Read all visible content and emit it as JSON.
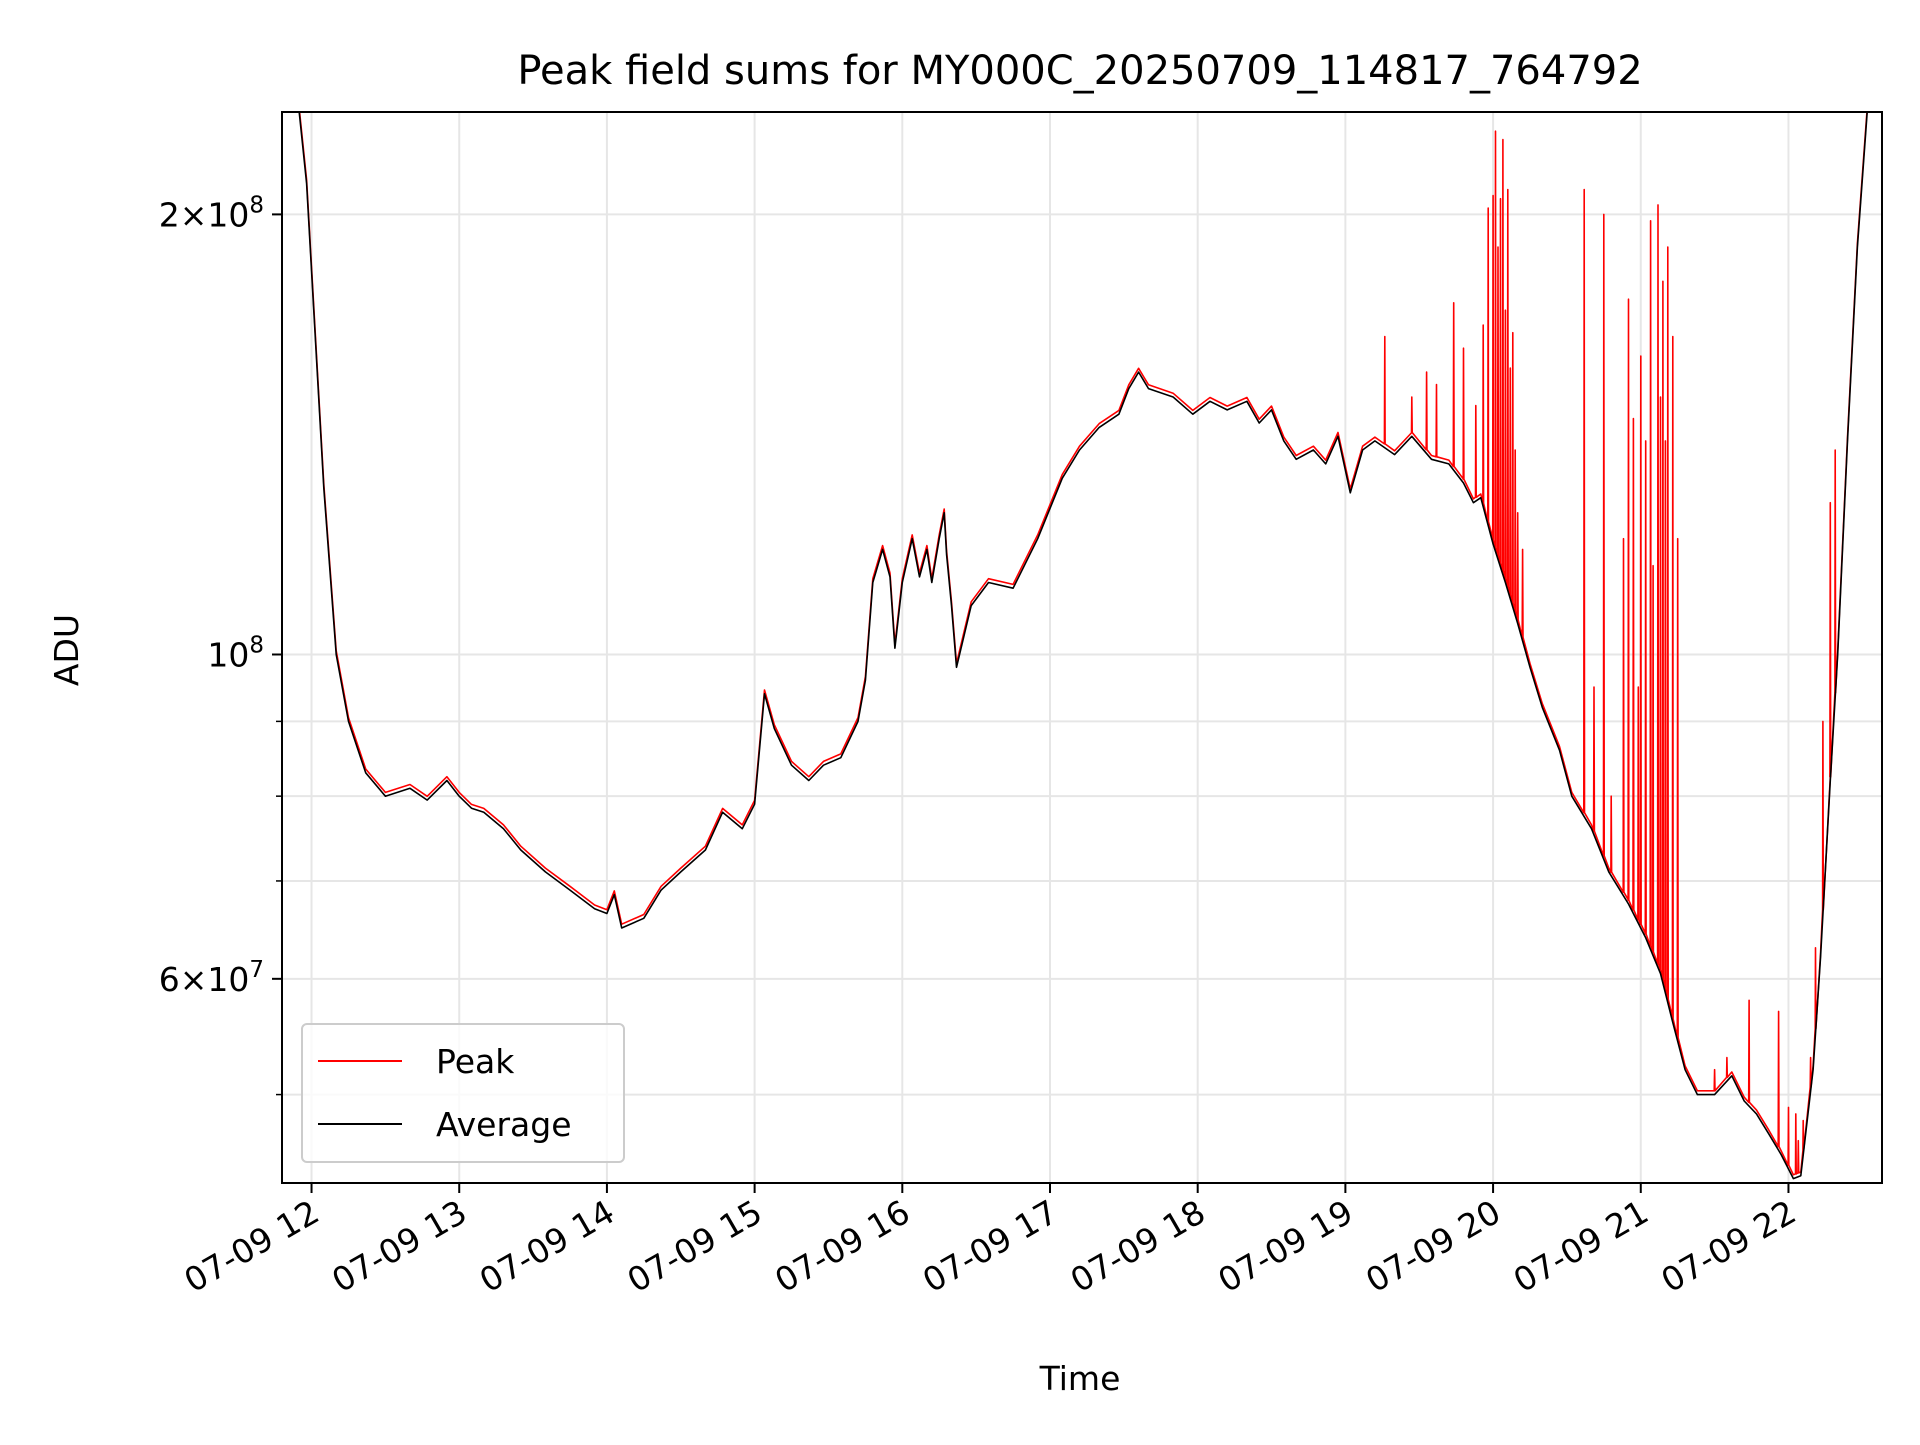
{
  "chart_data": {
    "type": "line",
    "title": "Peak field sums for MY000C_20250709_114817_764792",
    "xlabel": "Time",
    "ylabel": "ADU",
    "yscale": "log",
    "ylim": [
      43500000,
      235000000
    ],
    "xlim": [
      "07-09 11:48",
      "07-09 22:38"
    ],
    "grid": true,
    "legend": "lower-left",
    "x_ticks": [
      "07-09 12",
      "07-09 13",
      "07-09 14",
      "07-09 15",
      "07-09 16",
      "07-09 17",
      "07-09 18",
      "07-09 19",
      "07-09 20",
      "07-09 21",
      "07-09 22"
    ],
    "y_major_ticks": [
      {
        "value": 200000000,
        "mant": "2",
        "times": "×",
        "base": "10",
        "exp": "8"
      },
      {
        "value": 100000000,
        "mant": "",
        "times": "",
        "base": "10",
        "exp": "8"
      },
      {
        "value": 60000000,
        "mant": "6",
        "times": "×",
        "base": "10",
        "exp": "7"
      }
    ],
    "y_minor_ticks": [
      50000000,
      70000000,
      80000000,
      90000000
    ],
    "series": [
      {
        "name": "Average",
        "color": "#000000",
        "points": [
          [
            "11:55",
            235000000
          ],
          [
            "11:58",
            210000000
          ],
          [
            "12:05",
            130000000
          ],
          [
            "12:10",
            100000000
          ],
          [
            "12:15",
            90000000
          ],
          [
            "12:22",
            83000000
          ],
          [
            "12:30",
            80000000
          ],
          [
            "12:40",
            81000000
          ],
          [
            "12:47",
            79500000
          ],
          [
            "12:55",
            82000000
          ],
          [
            "13:00",
            80000000
          ],
          [
            "13:05",
            78500000
          ],
          [
            "13:10",
            78000000
          ],
          [
            "13:18",
            76000000
          ],
          [
            "13:25",
            73500000
          ],
          [
            "13:35",
            71000000
          ],
          [
            "13:45",
            69000000
          ],
          [
            "13:55",
            67000000
          ],
          [
            "14:00",
            66500000
          ],
          [
            "14:03",
            68500000
          ],
          [
            "14:06",
            65000000
          ],
          [
            "14:15",
            66000000
          ],
          [
            "14:22",
            69000000
          ],
          [
            "14:30",
            71000000
          ],
          [
            "14:40",
            73500000
          ],
          [
            "14:47",
            78000000
          ],
          [
            "14:55",
            76000000
          ],
          [
            "15:00",
            79000000
          ],
          [
            "15:04",
            94000000
          ],
          [
            "15:08",
            89000000
          ],
          [
            "15:15",
            84000000
          ],
          [
            "15:22",
            82000000
          ],
          [
            "15:28",
            84000000
          ],
          [
            "15:35",
            85000000
          ],
          [
            "15:42",
            90000000
          ],
          [
            "15:45",
            96000000
          ],
          [
            "15:48",
            112000000
          ],
          [
            "15:52",
            118000000
          ],
          [
            "15:55",
            113000000
          ],
          [
            "15:57",
            101000000
          ],
          [
            "16:00",
            112000000
          ],
          [
            "16:04",
            120000000
          ],
          [
            "16:07",
            113000000
          ],
          [
            "16:10",
            118000000
          ],
          [
            "16:12",
            112000000
          ],
          [
            "16:15",
            120000000
          ],
          [
            "16:17",
            125000000
          ],
          [
            "16:18",
            117000000
          ],
          [
            "16:20",
            108000000
          ],
          [
            "16:22",
            98000000
          ],
          [
            "16:28",
            108000000
          ],
          [
            "16:35",
            112000000
          ],
          [
            "16:45",
            111000000
          ],
          [
            "16:55",
            120000000
          ],
          [
            "17:05",
            132000000
          ],
          [
            "17:12",
            138000000
          ],
          [
            "17:20",
            143000000
          ],
          [
            "17:28",
            146000000
          ],
          [
            "17:32",
            152000000
          ],
          [
            "17:36",
            156000000
          ],
          [
            "17:40",
            152000000
          ],
          [
            "17:50",
            150000000
          ],
          [
            "17:58",
            146000000
          ],
          [
            "18:05",
            149000000
          ],
          [
            "18:12",
            147000000
          ],
          [
            "18:20",
            149000000
          ],
          [
            "18:25",
            144000000
          ],
          [
            "18:30",
            147000000
          ],
          [
            "18:35",
            140000000
          ],
          [
            "18:40",
            136000000
          ],
          [
            "18:47",
            138000000
          ],
          [
            "18:52",
            135000000
          ],
          [
            "18:57",
            141000000
          ],
          [
            "19:02",
            129000000
          ],
          [
            "19:07",
            138000000
          ],
          [
            "19:12",
            140000000
          ],
          [
            "19:20",
            137000000
          ],
          [
            "19:27",
            141000000
          ],
          [
            "19:35",
            136000000
          ],
          [
            "19:42",
            135000000
          ],
          [
            "19:48",
            131000000
          ],
          [
            "19:52",
            127000000
          ],
          [
            "19:55",
            128000000
          ],
          [
            "20:00",
            119000000
          ],
          [
            "20:05",
            112000000
          ],
          [
            "20:10",
            105000000
          ],
          [
            "20:15",
            98000000
          ],
          [
            "20:20",
            92000000
          ],
          [
            "20:27",
            86000000
          ],
          [
            "20:32",
            80000000
          ],
          [
            "20:40",
            76000000
          ],
          [
            "20:47",
            71000000
          ],
          [
            "20:55",
            67500000
          ],
          [
            "21:02",
            64000000
          ],
          [
            "21:08",
            60500000
          ],
          [
            "21:13",
            56000000
          ],
          [
            "21:18",
            52000000
          ],
          [
            "21:23",
            50000000
          ],
          [
            "21:30",
            50000000
          ],
          [
            "21:37",
            51500000
          ],
          [
            "21:42",
            49500000
          ],
          [
            "21:47",
            48500000
          ],
          [
            "21:52",
            47000000
          ],
          [
            "21:57",
            45500000
          ],
          [
            "22:02",
            43800000
          ],
          [
            "22:05",
            44000000
          ],
          [
            "22:10",
            52000000
          ],
          [
            "22:13",
            62000000
          ],
          [
            "22:17",
            82000000
          ],
          [
            "22:20",
            100000000
          ],
          [
            "22:24",
            140000000
          ],
          [
            "22:28",
            190000000
          ],
          [
            "22:32",
            235000000
          ]
        ]
      },
      {
        "name": "Peak",
        "color": "#ff0000",
        "spikes": [
          [
            "19:16",
            165000000
          ],
          [
            "19:27",
            150000000
          ],
          [
            "19:33",
            156000000
          ],
          [
            "19:37",
            153000000
          ],
          [
            "19:44",
            174000000
          ],
          [
            "19:48",
            162000000
          ],
          [
            "19:53",
            148000000
          ],
          [
            "19:56",
            168000000
          ],
          [
            "19:58",
            202000000
          ],
          [
            "20:00",
            206000000
          ],
          [
            "20:01",
            228000000
          ],
          [
            "20:02",
            190000000
          ],
          [
            "20:03",
            205000000
          ],
          [
            "20:04",
            225000000
          ],
          [
            "20:05",
            172000000
          ],
          [
            "20:06",
            208000000
          ],
          [
            "20:07",
            157000000
          ],
          [
            "20:08",
            166000000
          ],
          [
            "20:09",
            138000000
          ],
          [
            "20:10",
            125000000
          ],
          [
            "20:12",
            118000000
          ],
          [
            "20:37",
            208000000
          ],
          [
            "20:41",
            95000000
          ],
          [
            "20:45",
            200000000
          ],
          [
            "20:48",
            80000000
          ],
          [
            "20:53",
            120000000
          ],
          [
            "20:55",
            175000000
          ],
          [
            "20:57",
            145000000
          ],
          [
            "20:59",
            95000000
          ],
          [
            "21:00",
            160000000
          ],
          [
            "21:02",
            140000000
          ],
          [
            "21:04",
            198000000
          ],
          [
            "21:05",
            115000000
          ],
          [
            "21:07",
            203000000
          ],
          [
            "21:08",
            150000000
          ],
          [
            "21:09",
            180000000
          ],
          [
            "21:10",
            140000000
          ],
          [
            "21:11",
            190000000
          ],
          [
            "21:13",
            165000000
          ],
          [
            "21:15",
            120000000
          ],
          [
            "21:30",
            52000000
          ],
          [
            "21:35",
            53000000
          ],
          [
            "21:44",
            58000000
          ],
          [
            "21:56",
            57000000
          ],
          [
            "22:00",
            49000000
          ],
          [
            "22:03",
            48500000
          ],
          [
            "22:04",
            46500000
          ],
          [
            "22:06",
            48000000
          ],
          [
            "22:09",
            53000000
          ],
          [
            "22:11",
            63000000
          ],
          [
            "22:14",
            90000000
          ],
          [
            "22:17",
            127000000
          ],
          [
            "22:19",
            138000000
          ]
        ]
      }
    ]
  }
}
